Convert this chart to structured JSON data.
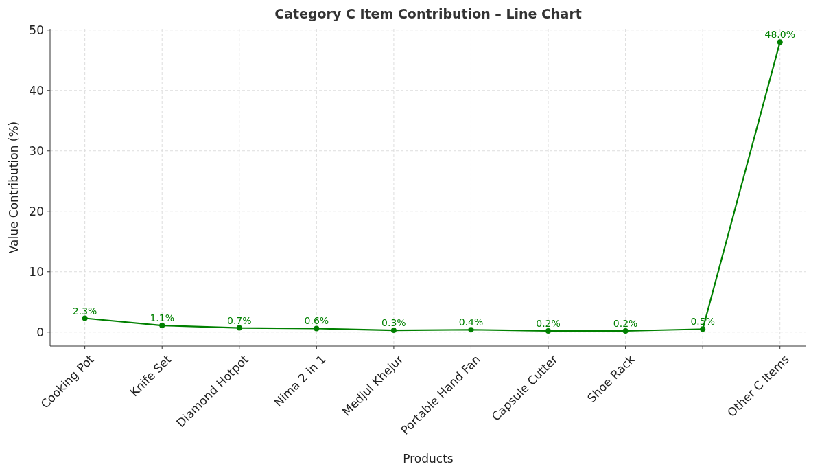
{
  "chart_data": {
    "type": "line",
    "title": "Category C Item Contribution – Line Chart",
    "xlabel": "Products",
    "ylabel": "Value Contribution (%)",
    "categories": [
      "Cooking Pot",
      "Knife Set",
      "Diamond Hotpot",
      "Nima 2 in 1",
      "Medjul Khejur",
      "Portable Hand Fan",
      "Capsule Cutter",
      "Shoe Rack",
      null,
      "Other C Items"
    ],
    "series": [
      {
        "color": "#008000",
        "values": [
          2.3,
          1.1,
          0.7,
          0.6,
          0.3,
          0.4,
          0.2,
          0.2,
          0.5,
          48.0
        ],
        "value_labels": [
          "2.3%",
          "1.1%",
          "0.7%",
          "0.6%",
          "0.3%",
          "0.4%",
          "0.2%",
          "0.2%",
          "0.5%",
          "48.0%"
        ]
      }
    ],
    "ylim": [
      -2.3,
      50.2
    ],
    "yticks": [
      0,
      10,
      20,
      30,
      40,
      50
    ],
    "grid": true,
    "marker": "circle",
    "line_style": "solid"
  }
}
